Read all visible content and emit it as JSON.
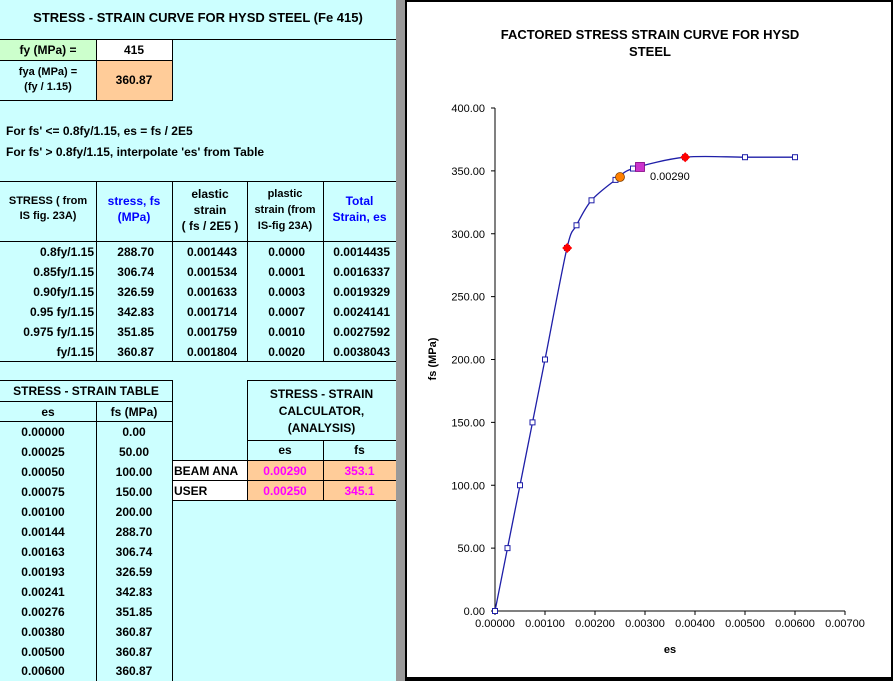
{
  "sheet": {
    "title": "STRESS - STRAIN CURVE FOR HYSD STEEL (Fe 415)",
    "fy_label": "fy (MPa) =",
    "fy_value": "415",
    "fya_label_1": "fya (MPa)  =",
    "fya_label_2": "(fy / 1.15)",
    "fya_value": "360.87",
    "note_1": "For fs' <= 0.8fy/1.15, es = fs / 2E5",
    "note_2": "For fs' > 0.8fy/1.15, interpolate 'es' from Table",
    "colors": {
      "sheet_bg": "#ccffff",
      "accent_orange": "#ffcc99",
      "accent_green": "#ccffcc",
      "header_blue": "#0000ff",
      "value_magenta": "#ff00ff"
    }
  },
  "is_table": {
    "headers": {
      "stress_1": "STRESS ( from",
      "stress_2": "IS fig. 23A)",
      "fs_1": "stress, fs",
      "fs_2": "(MPa)",
      "elastic_1": "elastic",
      "elastic_2": "strain",
      "elastic_3": "( fs / 2E5 )",
      "plastic_1": "plastic",
      "plastic_2": "strain (from",
      "plastic_3": "IS-fig 23A)",
      "total_1": "Total",
      "total_2": "Strain, es"
    },
    "rows": [
      {
        "stress": "0.8fy/1.15",
        "fs": "288.70",
        "elastic": "0.001443",
        "plastic": "0.0000",
        "total": "0.0014435"
      },
      {
        "stress": "0.85fy/1.15",
        "fs": "306.74",
        "elastic": "0.001534",
        "plastic": "0.0001",
        "total": "0.0016337"
      },
      {
        "stress": "0.90fy/1.15",
        "fs": "326.59",
        "elastic": "0.001633",
        "plastic": "0.0003",
        "total": "0.0019329"
      },
      {
        "stress": "0.95 fy/1.15",
        "fs": "342.83",
        "elastic": "0.001714",
        "plastic": "0.0007",
        "total": "0.0024141"
      },
      {
        "stress": "0.975 fy/1.15",
        "fs": "351.85",
        "elastic": "0.001759",
        "plastic": "0.0010",
        "total": "0.0027592"
      },
      {
        "stress": "fy/1.15",
        "fs": "360.87",
        "elastic": "0.001804",
        "plastic": "0.0020",
        "total": "0.0038043"
      }
    ]
  },
  "ss_table": {
    "title": "STRESS - STRAIN TABLE",
    "col_es": "es",
    "col_fs": "fs (MPa)",
    "rows": [
      {
        "es": "0.00000",
        "fs": "0.00"
      },
      {
        "es": "0.00025",
        "fs": "50.00"
      },
      {
        "es": "0.00050",
        "fs": "100.00"
      },
      {
        "es": "0.00075",
        "fs": "150.00"
      },
      {
        "es": "0.00100",
        "fs": "200.00"
      },
      {
        "es": "0.00144",
        "fs": "288.70"
      },
      {
        "es": "0.00163",
        "fs": "306.74"
      },
      {
        "es": "0.00193",
        "fs": "326.59"
      },
      {
        "es": "0.00241",
        "fs": "342.83"
      },
      {
        "es": "0.00276",
        "fs": "351.85"
      },
      {
        "es": "0.00380",
        "fs": "360.87"
      },
      {
        "es": "0.00500",
        "fs": "360.87"
      },
      {
        "es": "0.00600",
        "fs": "360.87"
      }
    ]
  },
  "calculator": {
    "title_1": "STRESS - STRAIN",
    "title_2": "CALCULATOR,",
    "title_3": "(ANALYSIS)",
    "col_es": "es",
    "col_fs": "fs",
    "rows": [
      {
        "label": "BEAM ANA",
        "es": "0.00290",
        "fs": "353.1"
      },
      {
        "label": "USER",
        "es": "0.00250",
        "fs": "345.1"
      }
    ]
  },
  "chart_data": {
    "type": "scatter",
    "title": "FACTORED STRESS STRAIN CURVE FOR HYSD STEEL",
    "xlabel": "es",
    "ylabel": "fs (MPa)",
    "xlim": [
      0,
      0.007
    ],
    "ylim": [
      0,
      400
    ],
    "x_ticks": [
      "0.00000",
      "0.00100",
      "0.00200",
      "0.00300",
      "0.00400",
      "0.00500",
      "0.00600",
      "0.00700"
    ],
    "y_ticks": [
      "0.00",
      "50.00",
      "100.00",
      "150.00",
      "200.00",
      "250.00",
      "300.00",
      "350.00",
      "400.00"
    ],
    "grid": false,
    "series": [
      {
        "marker": "square-outline",
        "color": "#1f1fa8",
        "x": [
          0,
          0.00025,
          0.0005,
          0.00075,
          0.001,
          0.00144,
          0.00163,
          0.00193,
          0.00241,
          0.00276,
          0.0038,
          0.005,
          0.006
        ],
        "y": [
          0,
          50,
          100,
          150,
          200,
          288.7,
          306.74,
          326.59,
          342.83,
          351.85,
          360.87,
          360.87,
          360.87
        ]
      },
      {
        "marker": "diamond",
        "color": "#ff0000",
        "x": [
          0.0014435,
          0.0038043
        ],
        "y": [
          288.7,
          360.87
        ]
      },
      {
        "marker": "square",
        "color": "#cc33cc",
        "x": [
          0.0029
        ],
        "y": [
          353.1
        ]
      },
      {
        "marker": "circle",
        "color": "#ff8000",
        "x": [
          0.0025
        ],
        "y": [
          345.1
        ]
      }
    ],
    "annotations": [
      {
        "text": "0.00290",
        "x": 0.0029,
        "y": 353.1
      }
    ]
  }
}
